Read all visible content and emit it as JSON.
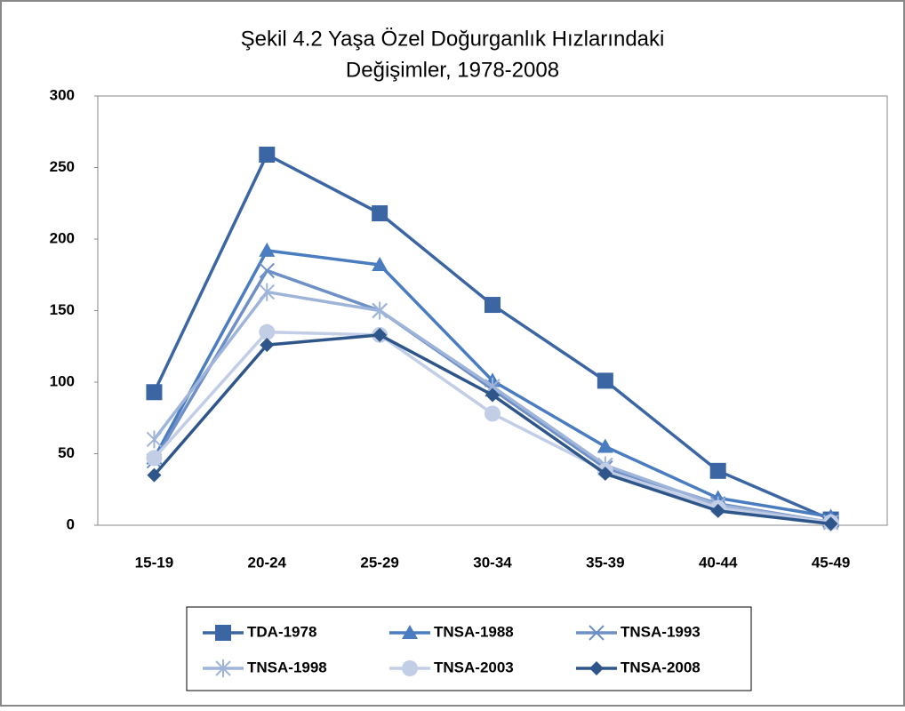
{
  "chart_data": {
    "type": "line",
    "title": [
      "Şekil 4.2 Yaşa Özel Doğurganlık Hızlarındaki",
      "Değişimler, 1978-2008"
    ],
    "categories": [
      "15-19",
      "20-24",
      "25-29",
      "30-34",
      "35-39",
      "40-44",
      "45-49"
    ],
    "series": [
      {
        "name": "TDA-1978",
        "color": "#3b66a3",
        "marker": "square",
        "values": [
          93,
          259,
          218,
          154,
          101,
          38,
          4
        ]
      },
      {
        "name": "TNSA-1988",
        "color": "#4a7cc0",
        "marker": "triangle",
        "values": [
          47,
          192,
          182,
          101,
          55,
          19,
          6
        ]
      },
      {
        "name": "TNSA-1993",
        "color": "#6f90c6",
        "marker": "x",
        "values": [
          45,
          178,
          150,
          95,
          40,
          15,
          2
        ]
      },
      {
        "name": "TNSA-1998",
        "color": "#9fb4d9",
        "marker": "star",
        "values": [
          60,
          163,
          150,
          97,
          42,
          14,
          2
        ]
      },
      {
        "name": "TNSA-2003",
        "color": "#c2cde6",
        "marker": "circle",
        "values": [
          47,
          135,
          133,
          78,
          38,
          12,
          2
        ]
      },
      {
        "name": "TNSA-2008",
        "color": "#2f568b",
        "marker": "diamond",
        "values": [
          35,
          126,
          133,
          91,
          36,
          10,
          1
        ]
      }
    ],
    "ylim": [
      0,
      300
    ],
    "yticks": [
      0,
      50,
      100,
      150,
      200,
      250,
      300
    ],
    "grid": false,
    "legend": "bottom"
  }
}
